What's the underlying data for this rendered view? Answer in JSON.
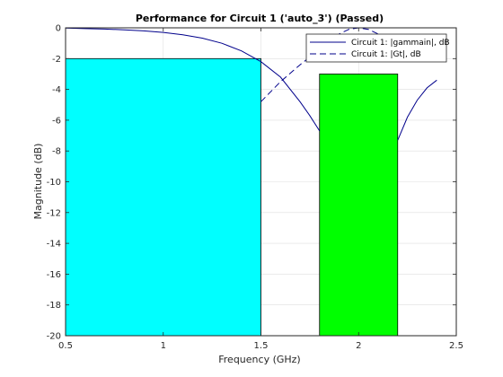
{
  "chart_data": {
    "type": "line",
    "title": "Performance for Circuit 1 ('auto_3')  (Passed)",
    "xlabel": "Frequency (GHz)",
    "ylabel": "Magnitude (dB)",
    "xlim": [
      0.5,
      2.5
    ],
    "ylim": [
      -20,
      0
    ],
    "grid": true,
    "legend_position": "top-right",
    "x_ticks": [
      0.5,
      1,
      1.5,
      2,
      2.5
    ],
    "x_tick_labels": [
      "0.5",
      "1",
      "1.5",
      "2",
      "2.5"
    ],
    "y_ticks": [
      0,
      -2,
      -4,
      -6,
      -8,
      -10,
      -12,
      -14,
      -16,
      -18,
      -20
    ],
    "y_tick_labels": [
      "0",
      "-2",
      "-4",
      "-6",
      "-8",
      "-10",
      "-12",
      "-14",
      "-16",
      "-18",
      "-20"
    ],
    "regions": [
      {
        "x_start": 0.5,
        "x_end": 1.5,
        "y_top": -2,
        "y_bottom": -20,
        "color": "#00ffff"
      },
      {
        "x_start": 1.8,
        "x_end": 2.2,
        "y_top": -3,
        "y_bottom": -20,
        "color": "#00ff00"
      }
    ],
    "series": [
      {
        "name": "Circuit 1: |gammain|, dB",
        "style": "solid",
        "color": "#00008b",
        "segments": [
          {
            "x": [
              0.5,
              0.6,
              0.7,
              0.8,
              0.9,
              1.0,
              1.1,
              1.2,
              1.3,
              1.4,
              1.5,
              1.6,
              1.7,
              1.75,
              1.8
            ],
            "y": [
              -0.02,
              -0.05,
              -0.08,
              -0.13,
              -0.2,
              -0.3,
              -0.45,
              -0.67,
              -1.0,
              -1.5,
              -2.2,
              -3.2,
              -4.8,
              -5.7,
              -6.7
            ]
          },
          {
            "x": [
              2.2,
              2.25,
              2.3,
              2.35,
              2.4
            ],
            "y": [
              -7.3,
              -5.8,
              -4.7,
              -3.9,
              -3.4
            ]
          }
        ]
      },
      {
        "name": "Circuit 1: |Gt|, dB",
        "style": "dashed",
        "color": "#00008b",
        "segments": [
          {
            "x": [
              1.5,
              1.6,
              1.7,
              1.8,
              1.85,
              1.9,
              1.95,
              2.0,
              2.05,
              2.1,
              2.15,
              2.2
            ],
            "y": [
              -4.8,
              -3.5,
              -2.4,
              -1.4,
              -0.85,
              -0.4,
              -0.1,
              0.0,
              -0.1,
              -0.4,
              -0.9,
              -1.6
            ]
          }
        ]
      }
    ]
  },
  "colors": {
    "axes_edge": "#262626",
    "grid": "#dfdfdf",
    "box_edge": "#000000"
  }
}
